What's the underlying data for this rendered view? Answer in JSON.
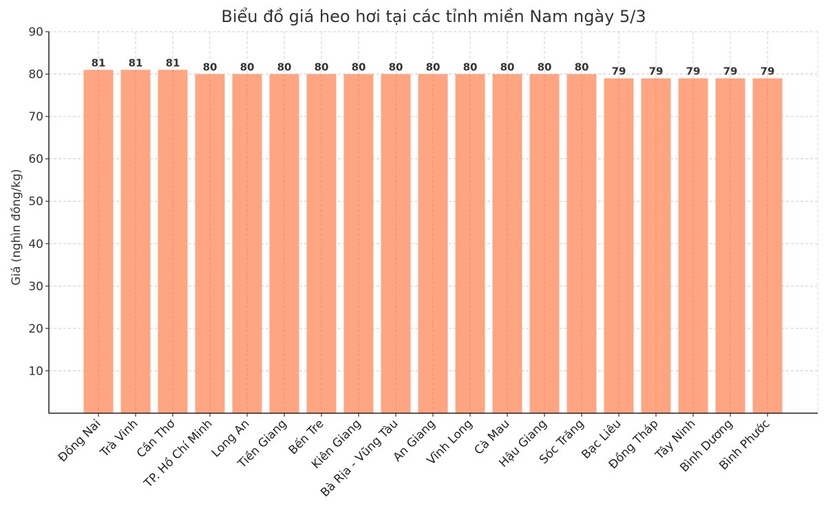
{
  "chart_data": {
    "type": "bar",
    "title": "Biểu đồ giá heo hơi tại các tỉnh miền Nam ngày 5/3",
    "xlabel": "",
    "ylabel": "Giá (nghìn đồng/kg)",
    "ylim": [
      0,
      90
    ],
    "yticks": [
      10,
      20,
      30,
      40,
      50,
      60,
      70,
      80,
      90
    ],
    "grid": true,
    "bar_color": "#FFA07A",
    "categories": [
      "Đồng Nai",
      "Trà Vinh",
      "Cần Thơ",
      "TP. Hồ Chí Minh",
      "Long An",
      "Tiền Giang",
      "Bến Tre",
      "Kiên Giang",
      "Bà Rịa - Vũng Tàu",
      "An Giang",
      "Vĩnh Long",
      "Cà Mau",
      "Hậu Giang",
      "Sóc Trăng",
      "Bạc Liêu",
      "Đồng Tháp",
      "Tây Ninh",
      "Bình Dương",
      "Bình Phước"
    ],
    "values": [
      81,
      81,
      81,
      80,
      80,
      80,
      80,
      80,
      80,
      80,
      80,
      80,
      80,
      80,
      79,
      79,
      79,
      79,
      79
    ],
    "data_labels": [
      "81",
      "81",
      "81",
      "80",
      "80",
      "80",
      "80",
      "80",
      "80",
      "80",
      "80",
      "80",
      "80",
      "80",
      "79",
      "79",
      "79",
      "79",
      "79"
    ]
  }
}
